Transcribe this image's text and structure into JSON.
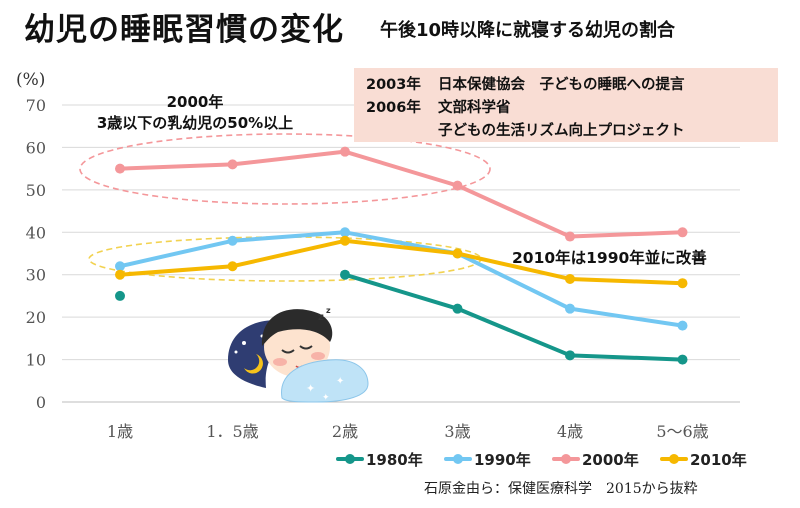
{
  "header": {
    "title": "幼児の睡眠習慣の変化",
    "subtitle": "午後10時以降に就寝する幼児の割合"
  },
  "annotations": {
    "a2000_line1": "2000年",
    "a2000_line2": "3歳以下の乳幼児の50%以上",
    "a2010": "2010年は1990年並に改善",
    "box": [
      {
        "year": "2003年",
        "text": "日本保健協会　子どもの睡眠への提言"
      },
      {
        "year": "2006年",
        "text": "文部科学省"
      },
      {
        "year": "",
        "text": "子どもの生活リズム向上プロジェクト"
      }
    ]
  },
  "source": "石原金由ら：保健医療科学　2015から抜粋",
  "colors": {
    "1980": "#15968a",
    "1990": "#72c7f2",
    "2000": "#f4979a",
    "2010": "#f6b800",
    "grid": "#d9d9d9",
    "box_bg": "#f9ddd4"
  },
  "chart_data": {
    "type": "line",
    "categories": [
      "1歳",
      "1．5歳",
      "2歳",
      "3歳",
      "4歳",
      "5～6歳"
    ],
    "ylabel": "(%)",
    "ylim": [
      0,
      70
    ],
    "yticks": [
      0,
      10,
      20,
      30,
      40,
      50,
      60,
      70
    ],
    "grid": true,
    "legend_position": "bottom",
    "series": [
      {
        "name": "1980年",
        "key": "1980",
        "values": [
          25,
          null,
          30,
          22,
          11,
          10
        ]
      },
      {
        "name": "1990年",
        "key": "1990",
        "values": [
          32,
          38,
          40,
          35,
          22,
          18
        ]
      },
      {
        "name": "2000年",
        "key": "2000",
        "values": [
          55,
          56,
          59,
          51,
          39,
          40
        ]
      },
      {
        "name": "2010年",
        "key": "2010",
        "values": [
          30,
          32,
          38,
          35,
          29,
          28
        ]
      }
    ]
  }
}
